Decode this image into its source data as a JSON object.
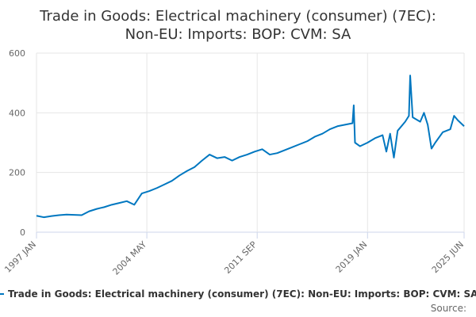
{
  "chart_data": {
    "type": "line",
    "title_lines": [
      "Trade in Goods: Electrical machinery (consumer) (7EC):",
      "Non-EU: Imports: BOP: CVM: SA"
    ],
    "legend": {
      "placement": "bottom",
      "entry": "Trade in Goods: Electrical machinery (consumer) (7EC): Non-EU: Imports: BOP: CVM: SA"
    },
    "source_label": "Source:",
    "series_color": "#0077c0",
    "grid": true,
    "ylim": [
      0,
      600
    ],
    "y_ticks": [
      0,
      200,
      400,
      600
    ],
    "x_range": [
      "1997 JAN",
      "2025 JUN"
    ],
    "x_ticks": [
      "1997 JAN",
      "2004 MAY",
      "2011 SEP",
      "2019 JAN",
      "2025 JUN"
    ],
    "series": [
      {
        "points": [
          [
            "1997 JAN",
            55
          ],
          [
            "1997 JUL",
            50
          ],
          [
            "1998 JAN",
            54
          ],
          [
            "1998 JUL",
            57
          ],
          [
            "1999 JAN",
            59
          ],
          [
            "1999 JUL",
            58
          ],
          [
            "2000 JAN",
            57
          ],
          [
            "2000 JUL",
            70
          ],
          [
            "2001 JAN",
            78
          ],
          [
            "2001 JUL",
            84
          ],
          [
            "2002 JAN",
            92
          ],
          [
            "2002 JUL",
            98
          ],
          [
            "2003 JAN",
            104
          ],
          [
            "2003 JUL",
            92
          ],
          [
            "2004 JAN",
            130
          ],
          [
            "2004 JUL",
            138
          ],
          [
            "2005 JAN",
            148
          ],
          [
            "2005 JUL",
            160
          ],
          [
            "2006 JAN",
            172
          ],
          [
            "2006 JUL",
            190
          ],
          [
            "2007 JAN",
            205
          ],
          [
            "2007 JUL",
            218
          ],
          [
            "2008 JAN",
            240
          ],
          [
            "2008 JUL",
            260
          ],
          [
            "2009 JAN",
            248
          ],
          [
            "2009 JUL",
            252
          ],
          [
            "2010 JAN",
            240
          ],
          [
            "2010 JUL",
            252
          ],
          [
            "2011 JAN",
            260
          ],
          [
            "2011 JUL",
            270
          ],
          [
            "2012 JAN",
            278
          ],
          [
            "2012 JUL",
            260
          ],
          [
            "2013 JAN",
            265
          ],
          [
            "2013 JUL",
            275
          ],
          [
            "2014 JAN",
            285
          ],
          [
            "2014 JUL",
            295
          ],
          [
            "2015 JAN",
            305
          ],
          [
            "2015 JUL",
            320
          ],
          [
            "2016 JAN",
            330
          ],
          [
            "2016 JUL",
            345
          ],
          [
            "2017 JAN",
            355
          ],
          [
            "2017 JUL",
            360
          ],
          [
            "2018 JAN",
            365
          ],
          [
            "2018 FEB",
            425
          ],
          [
            "2018 MAR",
            300
          ],
          [
            "2018 JUL",
            288
          ],
          [
            "2019 JAN",
            300
          ],
          [
            "2019 JUL",
            315
          ],
          [
            "2020 JAN",
            325
          ],
          [
            "2020 APR",
            270
          ],
          [
            "2020 JUL",
            330
          ],
          [
            "2020 OCT",
            250
          ],
          [
            "2021 JAN",
            340
          ],
          [
            "2021 JUL",
            370
          ],
          [
            "2021 OCT",
            390
          ],
          [
            "2021 NOV",
            525
          ],
          [
            "2022 JAN",
            385
          ],
          [
            "2022 JUL",
            370
          ],
          [
            "2022 OCT",
            400
          ],
          [
            "2023 JAN",
            360
          ],
          [
            "2023 APR",
            280
          ],
          [
            "2023 JUL",
            300
          ],
          [
            "2024 JAN",
            335
          ],
          [
            "2024 JUL",
            345
          ],
          [
            "2024 OCT",
            390
          ],
          [
            "2025 JAN",
            375
          ],
          [
            "2025 JUN",
            355
          ]
        ]
      }
    ]
  }
}
